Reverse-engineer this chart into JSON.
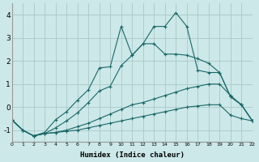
{
  "xlabel": "Humidex (Indice chaleur)",
  "bg_color": "#cce8e8",
  "grid_color": "#aac8c8",
  "line_color": "#1a6868",
  "xlim": [
    0,
    22
  ],
  "ylim": [
    -1.5,
    4.5
  ],
  "ytick_values": [
    -1,
    0,
    1,
    2,
    3,
    4
  ],
  "line1_x": [
    0,
    1,
    2,
    3,
    4,
    5,
    6,
    7,
    8,
    9,
    10,
    11,
    12,
    13,
    14,
    15,
    16,
    17,
    18,
    19,
    20,
    21,
    22
  ],
  "line1_y": [
    -0.55,
    -1.0,
    -1.25,
    -1.15,
    -1.1,
    -1.05,
    -1.0,
    -0.9,
    -0.8,
    -0.7,
    -0.6,
    -0.5,
    -0.4,
    -0.3,
    -0.2,
    -0.1,
    0.0,
    0.05,
    0.1,
    0.1,
    -0.35,
    -0.5,
    -0.6
  ],
  "line2_x": [
    0,
    1,
    2,
    3,
    4,
    5,
    6,
    7,
    8,
    9,
    10,
    11,
    12,
    13,
    14,
    15,
    16,
    17,
    18,
    19,
    20,
    21,
    22
  ],
  "line2_y": [
    -0.55,
    -1.0,
    -1.25,
    -1.15,
    -1.1,
    -1.0,
    -0.85,
    -0.7,
    -0.5,
    -0.3,
    -0.1,
    0.1,
    0.2,
    0.35,
    0.5,
    0.65,
    0.8,
    0.9,
    1.0,
    1.0,
    0.5,
    0.1,
    -0.6
  ],
  "line3_x": [
    0,
    1,
    2,
    3,
    4,
    5,
    6,
    7,
    8,
    9,
    10,
    11,
    12,
    13,
    14,
    15,
    16,
    17,
    18,
    19,
    20,
    21,
    22
  ],
  "line3_y": [
    -0.55,
    -1.0,
    -1.25,
    -1.15,
    -0.9,
    -0.6,
    -0.25,
    0.2,
    0.7,
    0.9,
    1.8,
    2.25,
    2.75,
    2.75,
    2.3,
    2.3,
    2.25,
    2.1,
    1.9,
    1.5,
    0.45,
    0.1,
    -0.6
  ],
  "line4_x": [
    0,
    1,
    2,
    3,
    4,
    5,
    6,
    7,
    8,
    9,
    10,
    11,
    12,
    13,
    14,
    15,
    16,
    17,
    18,
    19,
    20,
    21,
    22
  ],
  "line4_y": [
    -0.55,
    -1.0,
    -1.25,
    -1.1,
    -0.55,
    -0.2,
    0.3,
    0.75,
    1.7,
    1.75,
    3.5,
    2.25,
    2.75,
    3.5,
    3.5,
    4.1,
    3.5,
    1.6,
    1.5,
    1.5,
    0.45,
    0.1,
    -0.6
  ],
  "marker": "+",
  "markersize": 3,
  "linewidth": 0.8
}
